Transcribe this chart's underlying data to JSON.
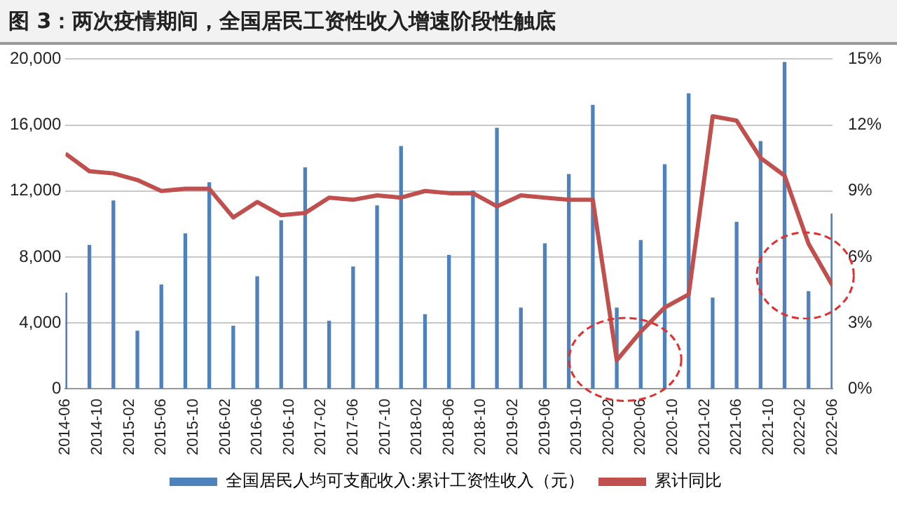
{
  "chart_data": {
    "type": "bar",
    "title": "图 3：两次疫情期间，全国居民工资性收入增速阶段性触底",
    "x": [
      "2014-06",
      "2014-09",
      "2014-12",
      "2015-03",
      "2015-06",
      "2015-09",
      "2015-12",
      "2016-03",
      "2016-06",
      "2016-09",
      "2016-12",
      "2017-03",
      "2017-06",
      "2017-09",
      "2017-12",
      "2018-03",
      "2018-06",
      "2018-09",
      "2018-12",
      "2019-03",
      "2019-06",
      "2019-09",
      "2019-12",
      "2020-03",
      "2020-06",
      "2020-09",
      "2020-12",
      "2021-03",
      "2021-06",
      "2021-09",
      "2021-12",
      "2022-03",
      "2022-06"
    ],
    "series": [
      {
        "name": "全国居民人均可支配收入:累计工资性收入（元）",
        "color": "#4f81bd",
        "values": [
          5800,
          8700,
          11400,
          3500,
          6300,
          9400,
          12500,
          3800,
          6800,
          10200,
          13400,
          4100,
          7400,
          11100,
          14700,
          4500,
          8100,
          12000,
          15800,
          4900,
          8800,
          13000,
          17200,
          4900,
          9000,
          13600,
          17900,
          5500,
          10100,
          15000,
          19800,
          5900,
          10600
        ]
      },
      {
        "name": "累计同比",
        "type": "line",
        "axis": "y2",
        "color": "#c0504d",
        "values": [
          10.7,
          9.9,
          9.8,
          9.5,
          9.0,
          9.1,
          9.1,
          7.8,
          8.5,
          7.9,
          8.0,
          8.7,
          8.6,
          8.8,
          8.7,
          9.0,
          8.9,
          8.9,
          8.3,
          8.8,
          8.7,
          8.6,
          8.6,
          1.3,
          2.6,
          3.7,
          4.3,
          12.4,
          12.2,
          10.5,
          9.7,
          6.6,
          4.7
        ]
      }
    ],
    "xlim": [
      "2014-06",
      "2022-06"
    ],
    "xticks": [
      "2014-06",
      "2014-10",
      "2015-02",
      "2015-06",
      "2015-10",
      "2016-02",
      "2016-06",
      "2016-10",
      "2017-02",
      "2017-06",
      "2017-10",
      "2018-02",
      "2018-06",
      "2018-10",
      "2019-02",
      "2019-06",
      "2019-10",
      "2020-02",
      "2020-06",
      "2020-10",
      "2021-02",
      "2021-06",
      "2021-10",
      "2022-02",
      "2022-06"
    ],
    "ylim": [
      0,
      20000
    ],
    "yticks": [
      {
        "value": 0,
        "label": "0"
      },
      {
        "value": 4000,
        "label": "4,000"
      },
      {
        "value": 8000,
        "label": "8,000"
      },
      {
        "value": 12000,
        "label": "12,000"
      },
      {
        "value": 16000,
        "label": "16,000"
      },
      {
        "value": 20000,
        "label": "20,000"
      }
    ],
    "y2lim": [
      0,
      15
    ],
    "y2ticks": [
      {
        "value": 0,
        "label": "0%"
      },
      {
        "value": 3,
        "label": "3%"
      },
      {
        "value": 6,
        "label": "6%"
      },
      {
        "value": 9,
        "label": "9%"
      },
      {
        "value": 12,
        "label": "12%"
      },
      {
        "value": 15,
        "label": "15%"
      }
    ],
    "grid": "y",
    "legend": "bottom",
    "marker": "none",
    "line_style": "solid"
  }
}
